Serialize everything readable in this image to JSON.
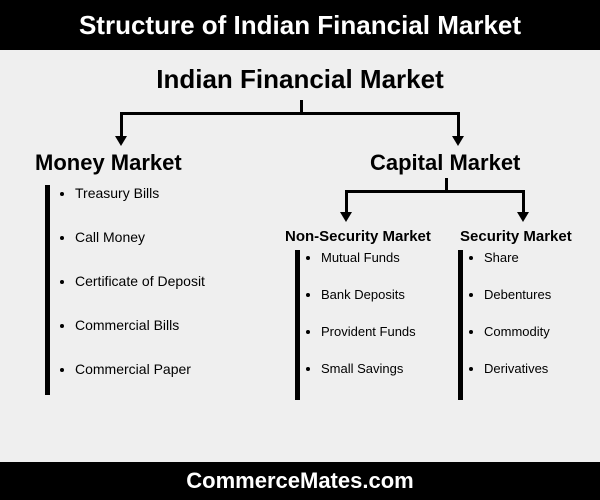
{
  "header": {
    "title": "Structure of Indian Financial Market"
  },
  "footer": {
    "text": "CommerceMates.com"
  },
  "diagram": {
    "type": "tree",
    "colors": {
      "header_bg": "#000000",
      "header_fg": "#ffffff",
      "canvas_bg": "#efefef",
      "line": "#000000",
      "text": "#000000"
    },
    "root": {
      "label": "Indian Financial Market",
      "fontsize": 26
    },
    "branches": [
      {
        "key": "money",
        "label": "Money Market",
        "fontsize": 22,
        "items": [
          "Treasury Bills",
          "Call Money",
          "Certificate of Deposit",
          "Commercial Bills",
          "Commercial Paper"
        ]
      },
      {
        "key": "capital",
        "label": "Capital Market",
        "fontsize": 22,
        "children": [
          {
            "key": "nonsec",
            "label": "Non-Security Market",
            "fontsize": 15,
            "items": [
              "Mutual Funds",
              "Bank Deposits",
              "Provident Funds",
              "Small Savings"
            ]
          },
          {
            "key": "sec",
            "label": "Security Market",
            "fontsize": 15,
            "items": [
              "Share",
              "Debentures",
              "Commodity",
              "Derivatives"
            ]
          }
        ]
      }
    ]
  }
}
